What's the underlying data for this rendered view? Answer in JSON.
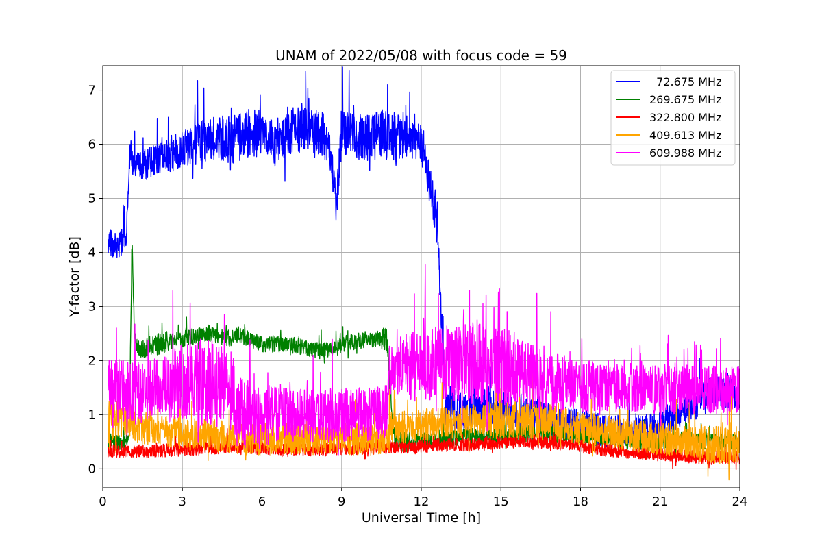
{
  "chart_data": {
    "type": "line",
    "title": "UNAM of 2022/05/08 with focus code = 59",
    "xlabel": "Universal Time [h]",
    "ylabel": "Y-factor [dB]",
    "xlim": [
      0,
      24
    ],
    "ylim": [
      -0.35,
      7.45
    ],
    "xticks": [
      "0",
      "3",
      "6",
      "9",
      "12",
      "15",
      "18",
      "21",
      "24"
    ],
    "yticks": [
      "0",
      "1",
      "2",
      "3",
      "4",
      "5",
      "6",
      "7"
    ],
    "grid": true,
    "legend_position": "top-right",
    "series": [
      {
        "name": "  72.675 MHz",
        "color": "#0000ff",
        "noise": [
          0.25,
          0.25,
          0.3,
          0.35,
          0.4,
          0.45,
          0.45,
          0.45,
          0.45,
          0.4,
          0.45,
          0.5,
          0.35,
          0.4,
          0.35,
          0.35,
          0.3,
          0.3,
          0.3,
          0.3,
          0.25,
          0.3,
          0.3,
          0.3,
          0.3
        ],
        "x": [
          0.2,
          0.5,
          0.9,
          1.0,
          1.2,
          1.5,
          2.0,
          2.5,
          3.0,
          3.5,
          4.0,
          4.5,
          5.0,
          5.5,
          6.0,
          6.5,
          7.0,
          7.5,
          8.0,
          8.5,
          8.8,
          9.0,
          9.5,
          10.0,
          10.5,
          11.0,
          11.5,
          12.0,
          12.3,
          12.5,
          12.6,
          12.9,
          13.5,
          14.0,
          14.5,
          15.0,
          15.5,
          16.0,
          17.0,
          18.0,
          19.0,
          20.0,
          21.0,
          22.0,
          23.0,
          24.0
        ],
        "y": [
          4.2,
          4.1,
          4.3,
          5.8,
          5.6,
          5.6,
          5.7,
          5.8,
          5.9,
          6.0,
          6.1,
          6.1,
          6.1,
          6.2,
          6.2,
          6.0,
          6.2,
          6.3,
          6.2,
          6.1,
          4.9,
          6.2,
          6.2,
          6.1,
          6.2,
          6.1,
          6.1,
          6.0,
          5.3,
          4.8,
          4.6,
          1.2,
          1.0,
          1.1,
          1.2,
          1.1,
          1.0,
          1.0,
          0.9,
          0.8,
          0.7,
          0.7,
          0.8,
          1.1,
          1.4,
          1.4
        ]
      },
      {
        "name": "269.675 MHz",
        "color": "#008000",
        "noise": [
          0.15,
          0.15,
          0.2,
          0.15,
          0.15,
          0.15,
          0.15,
          0.15,
          0.15,
          0.15,
          0.15,
          0.2,
          0.15,
          0.15,
          0.15,
          0.15,
          0.15,
          0.15,
          0.15,
          0.15,
          0.15,
          0.15,
          0.15,
          0.15,
          0.15
        ],
        "x": [
          0.2,
          1.0,
          1.1,
          1.2,
          1.4,
          2.0,
          3.0,
          4.0,
          4.8,
          5.0,
          6.0,
          7.0,
          8.0,
          8.7,
          9.0,
          10.0,
          10.7,
          11.0,
          12.0,
          13.0,
          14.0,
          15.0,
          16.0,
          17.0,
          18.0,
          19.0,
          20.0,
          21.0,
          22.0,
          23.0,
          24.0
        ],
        "y": [
          0.5,
          0.5,
          4.2,
          2.4,
          2.2,
          2.3,
          2.4,
          2.5,
          2.4,
          2.5,
          2.3,
          2.3,
          2.2,
          2.2,
          2.3,
          2.4,
          2.4,
          0.5,
          0.5,
          0.55,
          0.6,
          0.6,
          0.65,
          0.65,
          0.6,
          0.55,
          0.5,
          0.5,
          0.55,
          0.5,
          0.5
        ]
      },
      {
        "name": "322.800 MHz",
        "color": "#ff0000",
        "noise": [
          0.12,
          0.12,
          0.12,
          0.12,
          0.12,
          0.12,
          0.12,
          0.12,
          0.12,
          0.12,
          0.12,
          0.12,
          0.12,
          0.12,
          0.12,
          0.12,
          0.12,
          0.12,
          0.12,
          0.12,
          0.12,
          0.12,
          0.12,
          0.12,
          0.12
        ],
        "x": [
          0.2,
          2.0,
          4.0,
          5.0,
          6.0,
          8.0,
          10.0,
          12.0,
          14.0,
          15.0,
          16.0,
          17.0,
          18.0,
          19.0,
          20.0,
          21.0,
          22.0,
          23.0,
          24.0
        ],
        "y": [
          0.32,
          0.33,
          0.38,
          0.42,
          0.38,
          0.35,
          0.38,
          0.42,
          0.45,
          0.48,
          0.5,
          0.48,
          0.42,
          0.35,
          0.3,
          0.28,
          0.22,
          0.2,
          0.2
        ]
      },
      {
        "name": "409.613 MHz",
        "color": "#ffa500",
        "noise": [
          0.4,
          0.35,
          0.3,
          0.3,
          0.3,
          0.3,
          0.3,
          0.3,
          0.3,
          0.3,
          0.3,
          0.3,
          0.3,
          0.3,
          0.3,
          0.35,
          0.35,
          0.35,
          0.3,
          0.3,
          0.3,
          0.3,
          0.3,
          0.35,
          0.35
        ],
        "x": [
          0.2,
          0.8,
          1.5,
          3.0,
          4.5,
          5.5,
          7.0,
          9.0,
          10.7,
          10.8,
          12.0,
          13.0,
          14.0,
          15.0,
          16.0,
          17.0,
          18.0,
          19.0,
          20.0,
          21.0,
          22.0,
          23.0,
          24.0
        ],
        "y": [
          0.85,
          0.95,
          0.75,
          0.65,
          0.6,
          0.55,
          0.55,
          0.55,
          0.55,
          0.75,
          0.8,
          0.85,
          0.9,
          0.9,
          0.9,
          0.85,
          0.75,
          0.7,
          0.6,
          0.55,
          0.5,
          0.45,
          0.45
        ]
      },
      {
        "name": "609.988 MHz",
        "color": "#ff00ff",
        "noise": [
          0.55,
          0.6,
          0.55,
          0.7,
          0.8,
          0.65,
          0.55,
          0.5,
          0.5,
          0.5,
          0.5,
          0.5,
          0.65,
          0.7,
          0.75,
          0.7,
          0.6,
          0.55,
          0.5,
          0.45,
          0.45,
          0.45,
          0.45,
          0.45,
          0.45
        ],
        "x": [
          0.2,
          1.0,
          2.0,
          3.0,
          4.0,
          4.9,
          5.0,
          6.0,
          8.0,
          10.0,
          10.7,
          10.8,
          12.0,
          13.0,
          14.0,
          15.0,
          16.0,
          17.0,
          18.0,
          19.0,
          20.0,
          21.0,
          22.0,
          23.0,
          24.0
        ],
        "y": [
          1.5,
          1.4,
          1.5,
          1.6,
          1.6,
          1.5,
          1.05,
          1.0,
          1.0,
          1.0,
          1.05,
          1.85,
          1.9,
          1.95,
          1.95,
          1.9,
          1.75,
          1.6,
          1.5,
          1.5,
          1.5,
          1.45,
          1.45,
          1.45,
          1.45
        ]
      }
    ]
  }
}
